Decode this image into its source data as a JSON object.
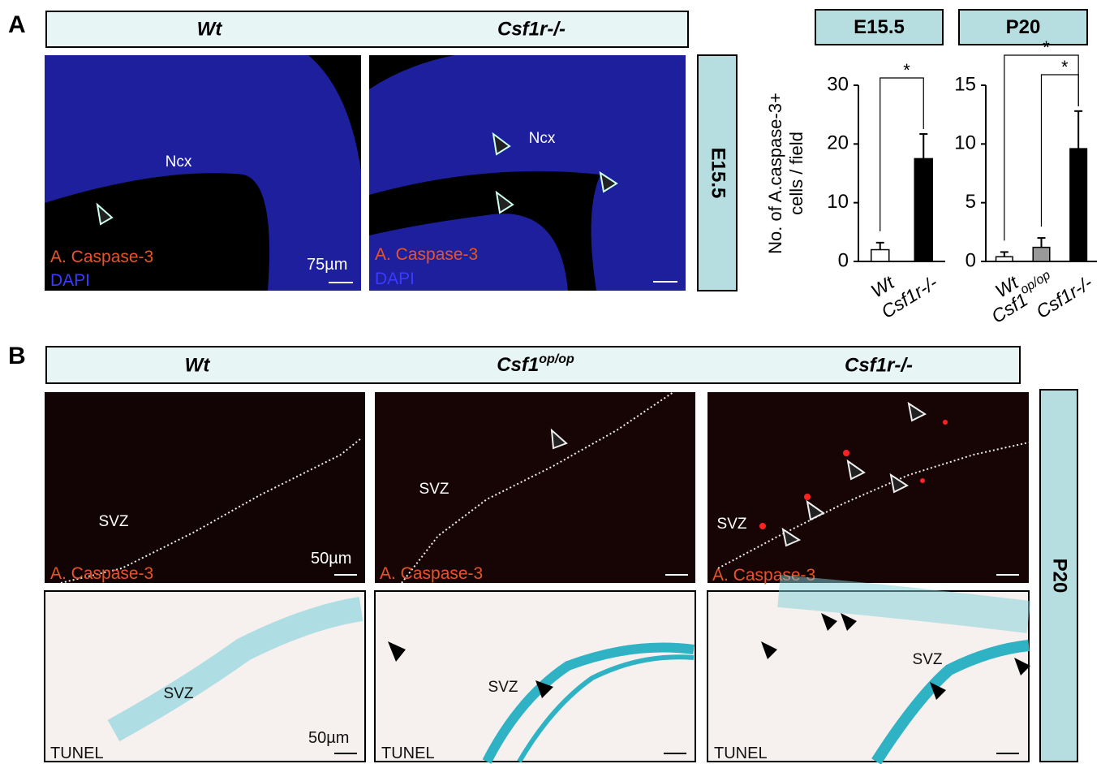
{
  "panel_a": {
    "label": "A",
    "header": {
      "left": "Wt",
      "right": "Csf1r-/-"
    },
    "images": [
      {
        "region": "Ncx",
        "stain": "A. Caspase-3",
        "counterstain": "DAPI",
        "scale_bar": "75µm"
      },
      {
        "region": "Ncx",
        "stain": "A. Caspase-3",
        "counterstain": "DAPI"
      }
    ],
    "stage": "E15.5"
  },
  "panel_b": {
    "label": "B",
    "header": [
      {
        "text": "Wt"
      },
      {
        "text": "Csf1",
        "sup": "op/op"
      },
      {
        "text": "Csf1r-/-"
      }
    ],
    "caspase_images": [
      {
        "region": "SVZ",
        "stain": "A. Caspase-3",
        "scale_bar": "50µm"
      },
      {
        "region": "SVZ",
        "stain": "A. Caspase-3"
      },
      {
        "region": "SVZ",
        "stain": "A. Caspase-3"
      }
    ],
    "tunel_images": [
      {
        "region": "SVZ",
        "stain": "TUNEL",
        "scale_bar": "50µm"
      },
      {
        "region": "SVZ",
        "stain": "TUNEL"
      },
      {
        "region": "SVZ",
        "stain": "TUNEL"
      }
    ],
    "stage": "P20"
  },
  "chart_data": [
    {
      "type": "bar",
      "title": "E15.5",
      "ylabel": [
        "No. of A.caspase-3+",
        "cells / field"
      ],
      "categories": [
        "Wt",
        "Csf1r-/-"
      ],
      "values": [
        2,
        17.5
      ],
      "errors": [
        1.2,
        4.2
      ],
      "colors": [
        "#ffffff",
        "#000000"
      ],
      "ylim": [
        0,
        30
      ],
      "yticks": [
        0,
        10,
        20,
        30
      ],
      "annotations": [
        "*"
      ]
    },
    {
      "type": "bar",
      "title": "P20",
      "categories": [
        "Wt",
        "Csf1",
        "Csf1r-/-"
      ],
      "category_superscripts": [
        null,
        "op/op",
        null
      ],
      "values": [
        0.4,
        1.2,
        9.6
      ],
      "errors": [
        0.4,
        0.8,
        3.2
      ],
      "colors": [
        "#ffffff",
        "#999999",
        "#000000"
      ],
      "ylim": [
        0,
        15
      ],
      "yticks": [
        0,
        5,
        10,
        15
      ],
      "annotations": [
        "*",
        "*"
      ]
    }
  ]
}
